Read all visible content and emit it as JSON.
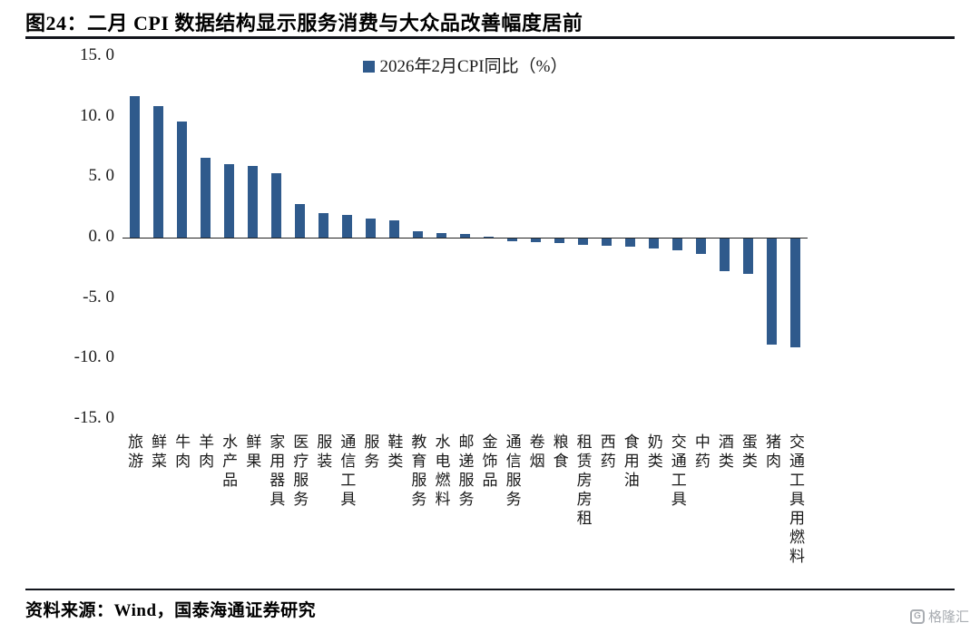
{
  "title": "图24：二月 CPI 数据结构显示服务消费与大众品改善幅度居前",
  "footer": {
    "source": "资料来源：Wind，国泰海通证券研究",
    "watermark": "格隆汇",
    "watermark_icon_letter": "G"
  },
  "chart_data": {
    "type": "bar",
    "title": "图24：二月 CPI 数据结构显示服务消费与大众品改善幅度居前",
    "legend": "2026年2月CPI同比（%）",
    "legend_position": "top-center",
    "bar_color": "#2F5A8C",
    "grid": false,
    "ylabel": "",
    "xlabel": "",
    "ylim": [
      -15,
      15
    ],
    "ytick_labels": [
      "15. 0",
      "10. 0",
      "5. 0",
      "0. 0",
      "-5. 0",
      "-10. 0",
      "-15. 0"
    ],
    "categories": [
      "旅游",
      "鲜菜",
      "牛肉",
      "羊肉",
      "水产品",
      "鲜果",
      "家用器具",
      "医疗服务",
      "服装",
      "通信工具",
      "服务",
      "鞋类",
      "教育服务",
      "水电燃料",
      "邮递服务",
      "金饰品",
      "通信服务",
      "卷烟",
      "粮食",
      "租赁房房租",
      "西药",
      "食用油",
      "奶类",
      "交通工具",
      "中药",
      "酒类",
      "蛋类",
      "猪肉",
      "交通工具用燃料"
    ],
    "values": [
      11.7,
      10.9,
      9.6,
      6.6,
      6.1,
      5.9,
      5.3,
      2.8,
      2.0,
      1.9,
      1.6,
      1.4,
      0.5,
      0.4,
      0.3,
      0.1,
      -0.2,
      -0.3,
      -0.4,
      -0.5,
      -0.6,
      -0.7,
      -0.8,
      -1.0,
      -1.3,
      -2.7,
      -2.9,
      -8.8,
      -9.0
    ]
  }
}
